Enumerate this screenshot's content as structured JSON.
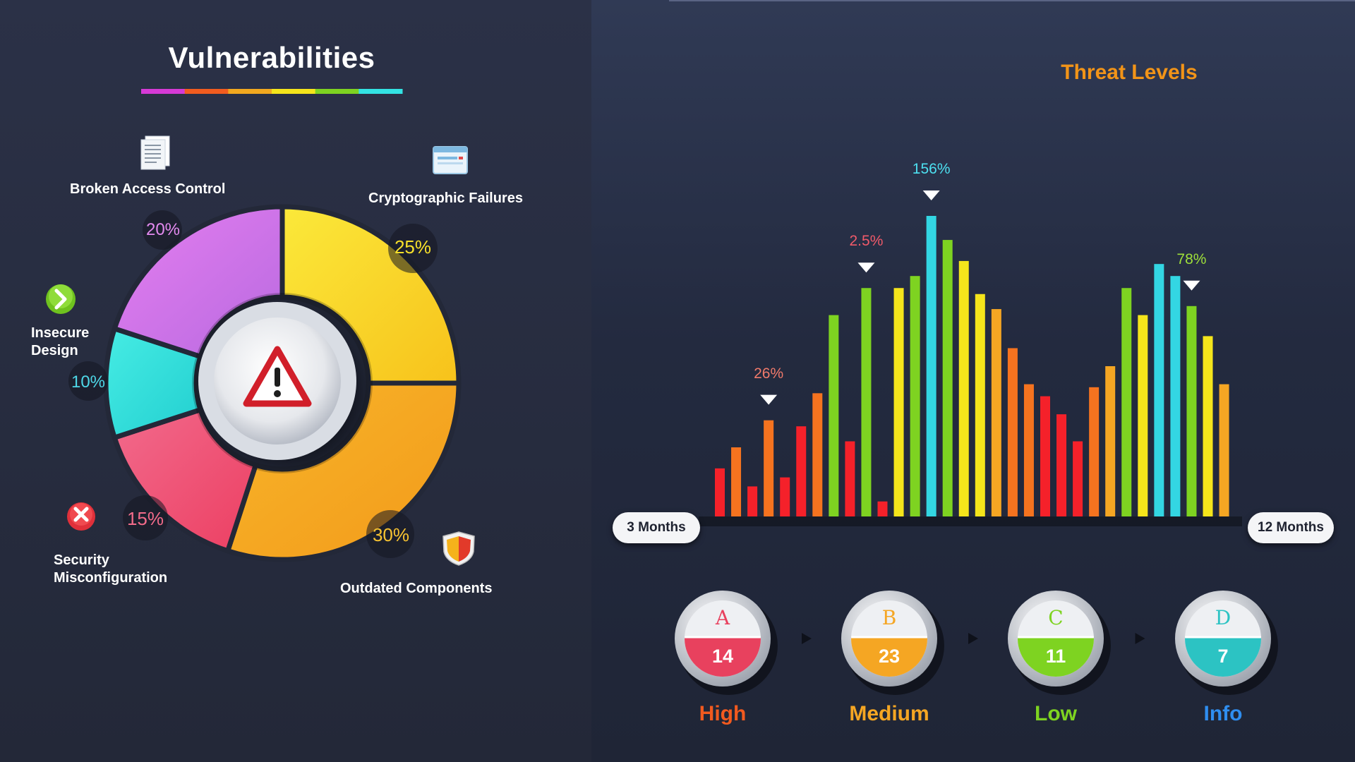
{
  "left": {
    "title": "Vulnerabilities",
    "title_underline_colors": [
      "#d63ad6",
      "#f25c1f",
      "#f2a81f",
      "#f5e51b",
      "#7ed321",
      "#33e3e3"
    ]
  },
  "right": {
    "title": "Threat Levels",
    "axis_start": "3 Months",
    "axis_end": "12 Months"
  },
  "annotations": [
    {
      "text": "26%",
      "bar_index": 3,
      "color": "#f07a6a"
    },
    {
      "text": "2.5%",
      "bar_index": 9,
      "color": "#f05a6a"
    },
    {
      "text": "156%",
      "bar_index": 13,
      "color": "#4de0f0"
    },
    {
      "text": "78%",
      "bar_index": 29,
      "color": "#9ee03a"
    }
  ],
  "levels": [
    {
      "letter": "A",
      "count": "14",
      "name": "High",
      "color": "#e8415e",
      "name_color": "#f25a1f",
      "icon": "badge-icon"
    },
    {
      "letter": "B",
      "count": "23",
      "name": "Medium",
      "color": "#f5a623",
      "name_color": "#f5a623",
      "icon": "badge-icon"
    },
    {
      "letter": "C",
      "count": "11",
      "name": "Low",
      "color": "#7ed321",
      "name_color": "#7ed321",
      "icon": "badge-icon"
    },
    {
      "letter": "D",
      "count": "7",
      "name": "Info",
      "color": "#2cc3c3",
      "name_color": "#2f8ef0",
      "icon": "badge-icon"
    }
  ],
  "chart_data": [
    {
      "type": "pie",
      "title": "Vulnerabilities",
      "slices": [
        {
          "label": "Cryptographic Failures",
          "value": 25,
          "value_label": "25%",
          "color": "#f9d616",
          "icon": "browser-window-icon"
        },
        {
          "label": "Outdated Components",
          "value": 30,
          "value_label": "30%",
          "color": "#f6a623",
          "icon": "shield-icon"
        },
        {
          "label": "Security Misconfiguration",
          "value": 15,
          "value_label": "15%",
          "color": "#ef4a73",
          "icon": "error-x-icon"
        },
        {
          "label": "Insecure Design",
          "value": 10,
          "value_label": "10%",
          "color": "#34e0d8",
          "icon": "arrow-right-icon"
        },
        {
          "label": "Broken Access Control",
          "value": 20,
          "value_label": "20%",
          "color": "#d66ee8",
          "icon": "document-icon"
        }
      ],
      "center_icon": "warning-icon"
    },
    {
      "type": "bar",
      "title": "Threat Levels",
      "xlabel_start": "3 Months",
      "xlabel_end": "12 Months",
      "ylim": [
        0,
        100
      ],
      "values": [
        16,
        23,
        10,
        32,
        13,
        30,
        41,
        67,
        25,
        76,
        5,
        76,
        80,
        100,
        92,
        85,
        74,
        69,
        56,
        44,
        40,
        34,
        25,
        43,
        50,
        76,
        67,
        84,
        80,
        70,
        60,
        44
      ],
      "colors": [
        "#f5212a",
        "#f5731f",
        "#f5212a",
        "#f5731f",
        "#f5212a",
        "#f5212a",
        "#f5731f",
        "#7ed321",
        "#f5212a",
        "#7ed321",
        "#f5212a",
        "#f5e51b",
        "#7ed321",
        "#33d6e3",
        "#7ed321",
        "#f5e51b",
        "#f5e51b",
        "#f5a623",
        "#f5731f",
        "#f5731f",
        "#f5212a",
        "#f5212a",
        "#f5212a",
        "#f5731f",
        "#f5a623",
        "#7ed321",
        "#f5e51b",
        "#33d6e3",
        "#33d6e3",
        "#7ed321",
        "#f5e51b",
        "#f5a623"
      ]
    }
  ]
}
